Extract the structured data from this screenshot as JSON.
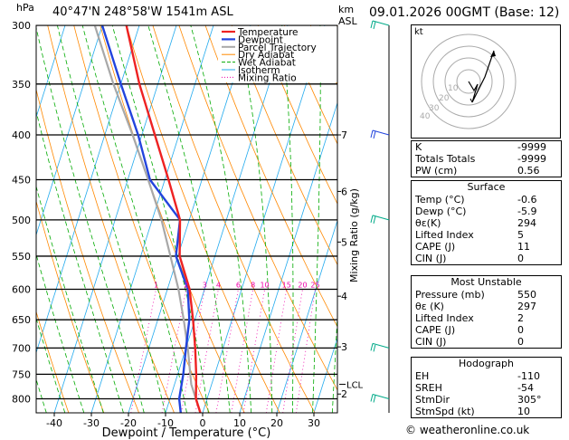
{
  "header": {
    "hpa_label": "hPa",
    "location": "40°47'N  248°58'W  1541m  ASL",
    "km_label": "km",
    "asl_label": "ASL",
    "datetime": "09.01.2026  00GMT  (Base: 12)"
  },
  "chart_data": {
    "type": "skew-t",
    "xlabel": "Dewpoint / Temperature (°C)",
    "ylabel_right": "Mixing Ratio (g/kg)",
    "x_ticks": [
      -40,
      -30,
      -20,
      -10,
      0,
      10,
      20,
      30
    ],
    "pressure_levels": [
      300,
      350,
      400,
      450,
      500,
      550,
      600,
      650,
      700,
      750,
      800
    ],
    "km_ticks": [
      {
        "km": "7",
        "p": 400
      },
      {
        "km": "6",
        "p": 464
      },
      {
        "km": "5",
        "p": 530
      },
      {
        "km": "4",
        "p": 611
      },
      {
        "km": "3",
        "p": 698
      },
      {
        "km": "2",
        "p": 790
      }
    ],
    "lcl": {
      "label": "LCL",
      "p": 770
    },
    "mixing_ratio_labels": [
      "1",
      "2",
      "3",
      "4",
      "6",
      "8",
      "10",
      "15",
      "20",
      "25"
    ],
    "mixing_ratio_values": [
      1,
      2,
      3,
      4,
      6,
      8,
      10,
      15,
      20,
      25
    ],
    "legend": [
      "Temperature",
      "Dewpoint",
      "Parcel Trajectory",
      "Dry Adiabat",
      "Wet Adiabat",
      "Isotherm",
      "Mixing Ratio"
    ],
    "temperature": [
      [
        830,
        -0.6
      ],
      [
        800,
        -3
      ],
      [
        750,
        -5
      ],
      [
        700,
        -7.5
      ],
      [
        650,
        -10.5
      ],
      [
        600,
        -14
      ],
      [
        550,
        -19.5
      ],
      [
        500,
        -22.5
      ],
      [
        450,
        -29
      ],
      [
        400,
        -36.5
      ],
      [
        350,
        -45
      ],
      [
        300,
        -53.5
      ]
    ],
    "dewpoint": [
      [
        830,
        -5.9
      ],
      [
        800,
        -7.5
      ],
      [
        750,
        -8.5
      ],
      [
        700,
        -10
      ],
      [
        650,
        -11.5
      ],
      [
        600,
        -14.5
      ],
      [
        550,
        -20.5
      ],
      [
        500,
        -22.5
      ],
      [
        450,
        -34
      ],
      [
        400,
        -41
      ],
      [
        350,
        -50
      ],
      [
        300,
        -60
      ]
    ],
    "parcel": [
      [
        830,
        -0.6
      ],
      [
        770,
        -5.5
      ],
      [
        700,
        -9.5
      ],
      [
        650,
        -13
      ],
      [
        600,
        -17
      ],
      [
        550,
        -22
      ],
      [
        500,
        -27.5
      ],
      [
        450,
        -34.5
      ],
      [
        400,
        -42.5
      ],
      [
        350,
        -52
      ],
      [
        300,
        -62
      ]
    ]
  },
  "hodograph": {
    "label": "kt",
    "ring_labels": [
      "10",
      "20",
      "30",
      "40"
    ]
  },
  "indices": {
    "k_label": "K",
    "k": "-9999",
    "tt_label": "Totals Totals",
    "tt": "-9999",
    "pw_label": "PW (cm)",
    "pw": "0.56"
  },
  "surface": {
    "title": "Surface",
    "temp_label": "Temp (°C)",
    "temp": "-0.6",
    "dewp_label": "Dewp (°C)",
    "dewp": "-5.9",
    "theta_label": "θε(K)",
    "theta": "294",
    "li_label": "Lifted Index",
    "li": "5",
    "cape_label": "CAPE (J)",
    "cape": "11",
    "cin_label": "CIN (J)",
    "cin": "0"
  },
  "most_unstable": {
    "title": "Most Unstable",
    "pressure_label": "Pressure (mb)",
    "pressure": "550",
    "theta_label": "θε (K)",
    "theta": "297",
    "li_label": "Lifted Index",
    "li": "2",
    "cape_label": "CAPE (J)",
    "cape": "0",
    "cin_label": "CIN (J)",
    "cin": "0"
  },
  "hodo_indices": {
    "title": "Hodograph",
    "eh_label": "EH",
    "eh": "-110",
    "sreh_label": "SREH",
    "sreh": "-54",
    "stmdir_label": "StmDir",
    "stmdir": "305°",
    "stmspd_label": "StmSpd (kt)",
    "stmspd": "10"
  },
  "copyright": "© weatheronline.co.uk",
  "colors": {
    "temperature": "#ee2222",
    "dewpoint": "#2244dd",
    "parcel": "#a8a8a8",
    "dry": "#ff8800",
    "wet": "#00aa00",
    "isotherm": "#22aaee",
    "mixing": "#ee00aa"
  }
}
